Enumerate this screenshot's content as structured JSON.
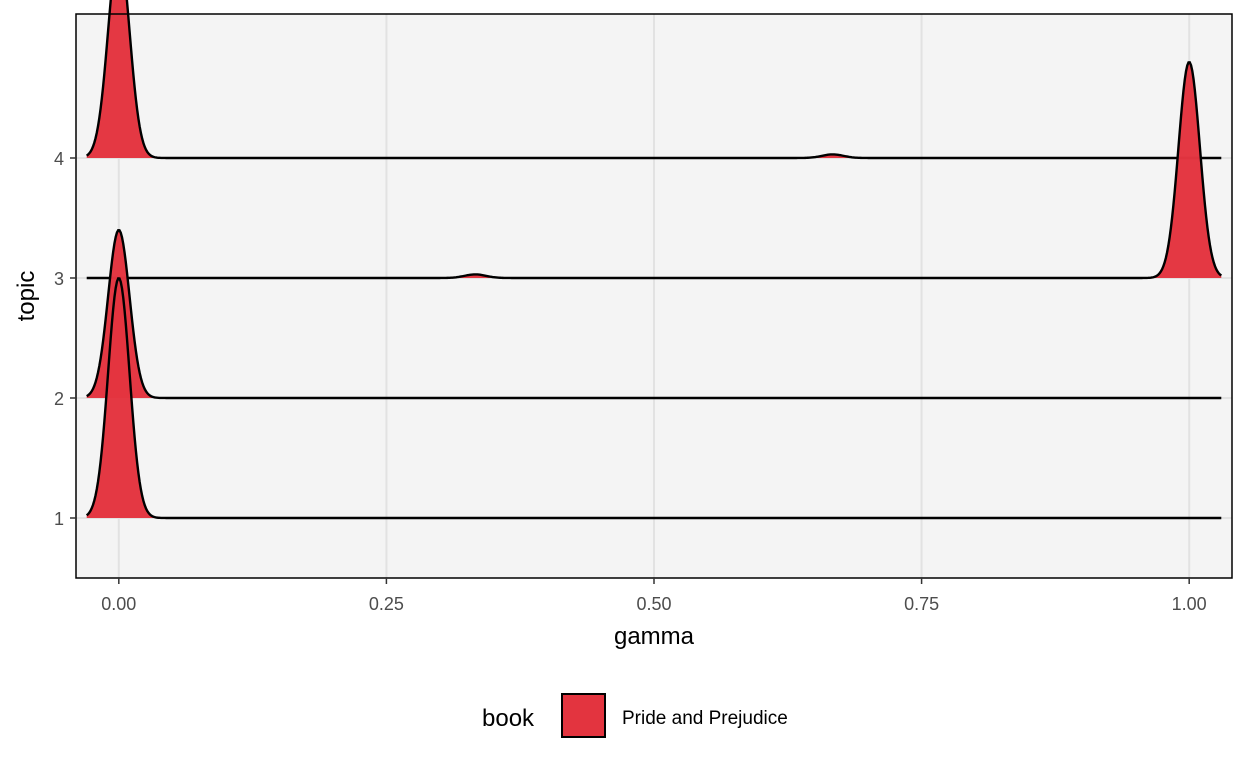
{
  "chart_data": {
    "type": "area",
    "subtype": "ridgeline-density",
    "title": "",
    "xlabel": "gamma",
    "ylabel": "topic",
    "xlim": [
      -0.04,
      1.04
    ],
    "ylim": [
      0.5,
      5.2
    ],
    "x_ticks": [
      "0.00",
      "0.25",
      "0.50",
      "0.75",
      "1.00"
    ],
    "x_tick_values": [
      0,
      0.25,
      0.5,
      0.75,
      1.0
    ],
    "y_ticks": [
      "1",
      "2",
      "3",
      "4"
    ],
    "y_tick_values": [
      1,
      2,
      3,
      4
    ],
    "grid": true,
    "background": "#f4f4f4",
    "series": [
      {
        "topic": 1,
        "x_range": [
          -0.03,
          1.03
        ],
        "peaks": [
          {
            "x": 0.0,
            "height": 2.0,
            "sd": 0.01
          }
        ]
      },
      {
        "topic": 2,
        "x_range": [
          -0.03,
          1.03
        ],
        "peaks": [
          {
            "x": 0.0,
            "height": 1.4,
            "sd": 0.01
          }
        ]
      },
      {
        "topic": 3,
        "x_range": [
          -0.03,
          1.03
        ],
        "peaks": [
          {
            "x": 0.333,
            "height": 0.03,
            "sd": 0.01
          },
          {
            "x": 1.0,
            "height": 1.8,
            "sd": 0.01
          }
        ]
      },
      {
        "topic": 4,
        "x_range": [
          -0.03,
          1.03
        ],
        "peaks": [
          {
            "x": 0.0,
            "height": 1.75,
            "sd": 0.01
          },
          {
            "x": 0.667,
            "height": 0.03,
            "sd": 0.01
          }
        ]
      }
    ],
    "legend": {
      "title": "book",
      "placement": "bottom",
      "entries": [
        {
          "name": "Pride and Prejudice",
          "color": "#e3343f"
        }
      ]
    },
    "fill_color": "#e3343f",
    "line_color": "#000000"
  }
}
